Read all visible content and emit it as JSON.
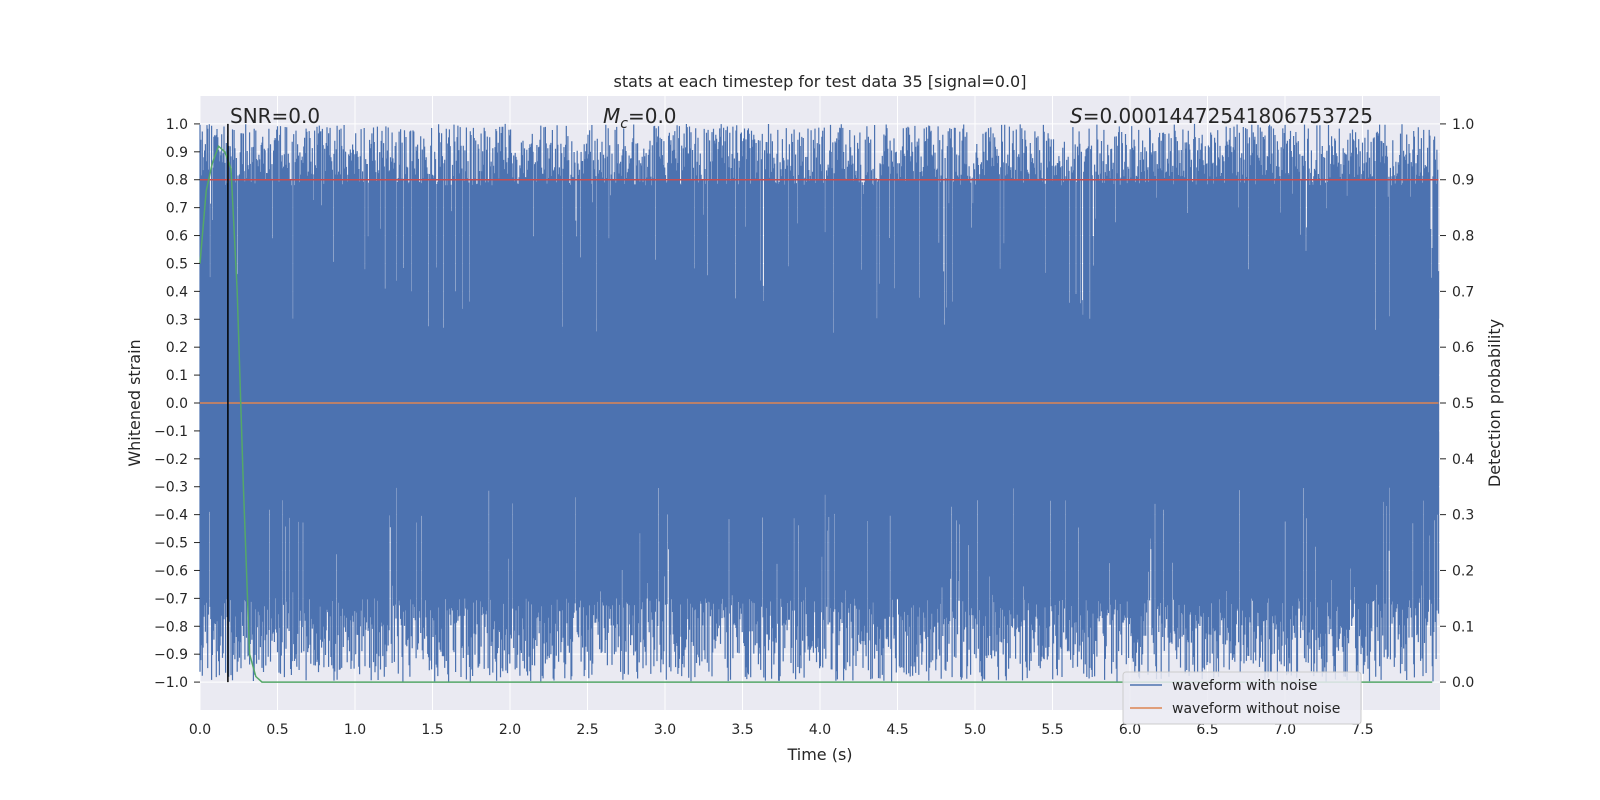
{
  "chart_data": {
    "type": "line",
    "title": "stats at each timestep for test data 35 [signal=0.0]",
    "xlabel": "Time (s)",
    "ylabel": "Whitened strain",
    "y2label": "Detection probability",
    "xlim": [
      0.0,
      8.0
    ],
    "ylim": [
      -1.1,
      1.1
    ],
    "y2lim": [
      -0.05,
      1.05
    ],
    "x_ticks": [
      0.0,
      0.5,
      1.0,
      1.5,
      2.0,
      2.5,
      3.0,
      3.5,
      4.0,
      4.5,
      5.0,
      5.5,
      6.0,
      6.5,
      7.0,
      7.5
    ],
    "x_tick_labels": [
      "0.0",
      "0.5",
      "1.0",
      "1.5",
      "2.0",
      "2.5",
      "3.0",
      "3.5",
      "4.0",
      "4.5",
      "5.0",
      "5.5",
      "6.0",
      "6.5",
      "7.0",
      "7.5"
    ],
    "y_ticks": [
      1.0,
      0.9,
      0.8,
      0.7,
      0.6,
      0.5,
      0.4,
      0.3,
      0.2,
      0.1,
      0.0,
      -0.1,
      -0.2,
      -0.3,
      -0.4,
      -0.5,
      -0.6,
      -0.7,
      -0.8,
      -0.9,
      -1.0
    ],
    "y_tick_labels": [
      "1.0",
      "0.9",
      "0.8",
      "0.7",
      "0.6",
      "0.5",
      "0.4",
      "0.3",
      "0.2",
      "0.1",
      "0.0",
      "−0.1",
      "−0.2",
      "−0.3",
      "−0.4",
      "−0.5",
      "−0.6",
      "−0.7",
      "−0.8",
      "−0.9",
      "−1.0"
    ],
    "y2_ticks": [
      1.0,
      0.9,
      0.8,
      0.7,
      0.6,
      0.5,
      0.4,
      0.3,
      0.2,
      0.1,
      0.0
    ],
    "y2_tick_labels": [
      "1.0",
      "0.9",
      "0.8",
      "0.7",
      "0.6",
      "0.5",
      "0.4",
      "0.3",
      "0.2",
      "0.1",
      "0.0"
    ],
    "annotations": {
      "snr": "SNR=0.0",
      "mc_symbol": "M",
      "mc_subscript": "c",
      "mc_value": "=0.0",
      "s_symbol": "S",
      "s_value": "=0.000144725418067537​25"
    },
    "series": [
      {
        "name": "waveform with noise",
        "color": "#4c72b0",
        "description": "noise filling roughly -1.0 to 1.0 across the full time range",
        "y_range": [
          -1.0,
          1.0
        ],
        "x_range": [
          0.0,
          7.99
        ]
      },
      {
        "name": "waveform without noise",
        "color": "#dd8452",
        "values_x": [
          0.0,
          7.99
        ],
        "values_y": [
          0.0,
          0.0
        ]
      },
      {
        "name": "detection probability",
        "color": "#55a868",
        "axis": "right",
        "x": [
          0.0,
          0.04,
          0.08,
          0.12,
          0.16,
          0.2,
          0.24,
          0.28,
          0.32,
          0.36,
          0.4,
          1.0,
          2.0,
          4.0,
          6.0,
          7.95
        ],
        "y": [
          0.75,
          0.88,
          0.93,
          0.96,
          0.95,
          0.92,
          0.7,
          0.35,
          0.05,
          0.01,
          0.0,
          0.0,
          0.0,
          0.0,
          0.0,
          0.0
        ]
      },
      {
        "name": "threshold",
        "color": "#c44e52",
        "axis": "right",
        "x": [
          0.0,
          7.99
        ],
        "y": [
          0.9,
          0.9
        ]
      },
      {
        "name": "marker",
        "color": "#000000",
        "x": [
          0.18,
          0.18
        ],
        "y": [
          -1.0,
          1.0
        ]
      }
    ],
    "legend": {
      "placement": "bottom-right",
      "entries": [
        "waveform with noise",
        "waveform without noise"
      ]
    },
    "grid": true
  }
}
